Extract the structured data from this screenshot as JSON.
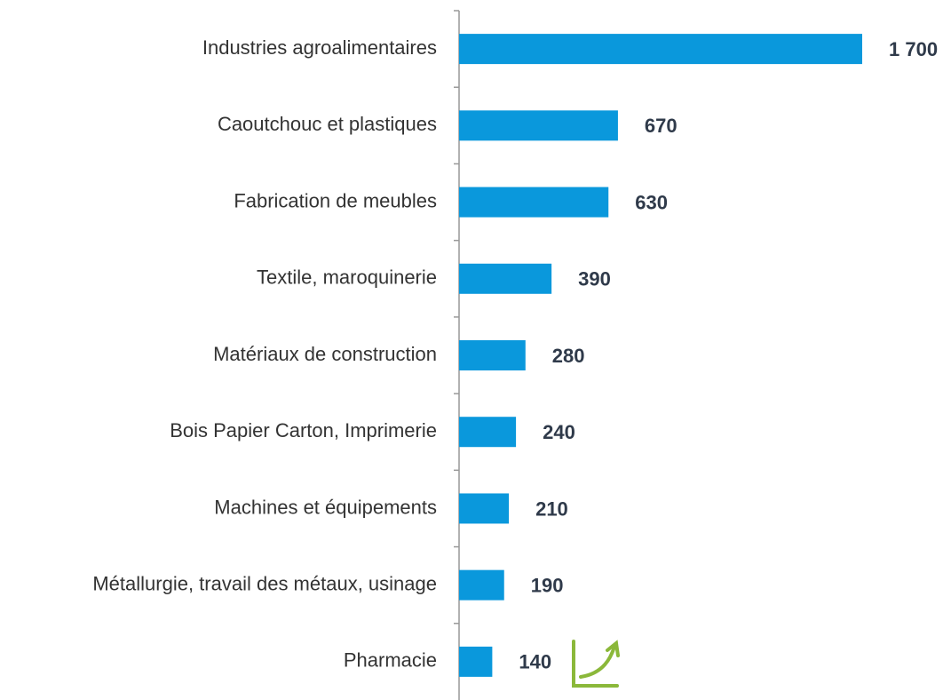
{
  "chart_data": {
    "type": "bar",
    "orientation": "horizontal",
    "categories": [
      "Industries agroalimentaires",
      "Caoutchouc et plastiques",
      "Fabrication de meubles",
      "Textile, maroquinerie",
      "Matériaux de construction",
      "Bois Papier Carton, Imprimerie",
      "Machines et équipements",
      "Métallurgie, travail des métaux, usinage",
      "Pharmacie"
    ],
    "values": [
      1700,
      670,
      630,
      390,
      280,
      240,
      210,
      190,
      140
    ],
    "value_labels": [
      "1 700",
      "670",
      "630",
      "390",
      "280",
      "240",
      "210",
      "190",
      "140"
    ],
    "color": "#0a98dc"
  }
}
